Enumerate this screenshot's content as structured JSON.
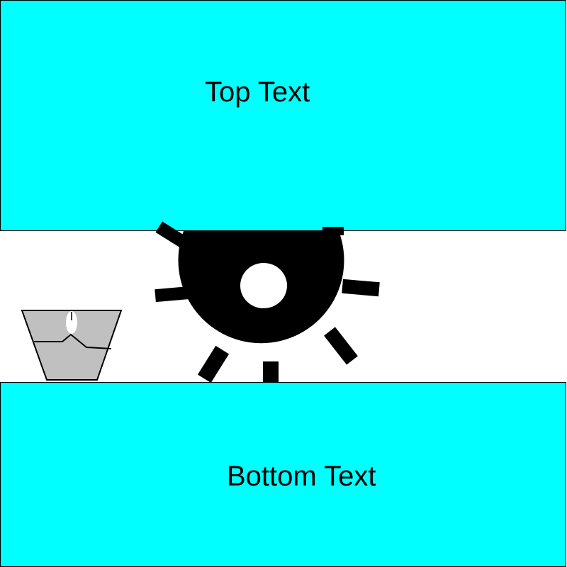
{
  "captions": {
    "top": "Top Text",
    "bottom": "Bottom Text"
  },
  "icons": {
    "gear": "gear-icon",
    "cup": "broken-cup-icon"
  },
  "colors": {
    "band": "#00ffff",
    "middle": "#ffffff",
    "gear": "#000000",
    "cup": "#c0c0c0"
  }
}
